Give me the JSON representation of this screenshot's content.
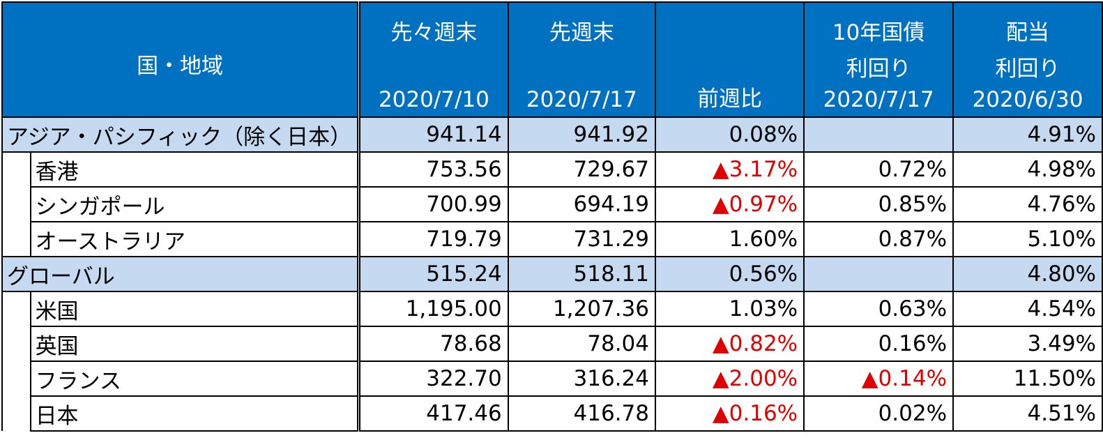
{
  "table": {
    "header": [
      [
        "国・地域"
      ],
      [
        "先々週末",
        "2020/7/10"
      ],
      [
        "先週末",
        "2020/7/17"
      ],
      [
        "前週比"
      ],
      [
        "10年国債",
        "利回り",
        "2020/7/17"
      ],
      [
        "配当",
        "利回り",
        "2020/6/30"
      ]
    ],
    "groups": [
      {
        "name": "アジア・パシフィック（除く日本）",
        "cells": [
          "941.14",
          "941.92",
          "0.08%",
          null,
          "4.91%"
        ],
        "items": [
          {
            "name": "香港",
            "cells": [
              "753.56",
              "729.67",
              "▲3.17%",
              "0.72%",
              "4.98%"
            ]
          },
          {
            "name": "シンガポール",
            "cells": [
              "700.99",
              "694.19",
              "▲0.97%",
              "0.85%",
              "4.76%"
            ]
          },
          {
            "name": "オーストラリア",
            "cells": [
              "719.79",
              "731.29",
              "1.60%",
              "0.87%",
              "5.10%"
            ]
          }
        ]
      },
      {
        "name": "グローバル",
        "cells": [
          "515.24",
          "518.11",
          "0.56%",
          null,
          "4.80%"
        ],
        "items": [
          {
            "name": "米国",
            "cells": [
              "1,195.00",
              "1,207.36",
              "1.03%",
              "0.63%",
              "4.54%"
            ]
          },
          {
            "name": "英国",
            "cells": [
              "78.68",
              "78.04",
              "▲0.82%",
              "0.16%",
              "3.49%"
            ]
          },
          {
            "name": "フランス",
            "cells": [
              "322.70",
              "316.24",
              "▲2.00%",
              "▲0.14%",
              "11.50%"
            ]
          },
          {
            "name": "日本",
            "cells": [
              "417.46",
              "416.78",
              "▲0.16%",
              "0.02%",
              "4.51%"
            ]
          }
        ]
      }
    ]
  }
}
